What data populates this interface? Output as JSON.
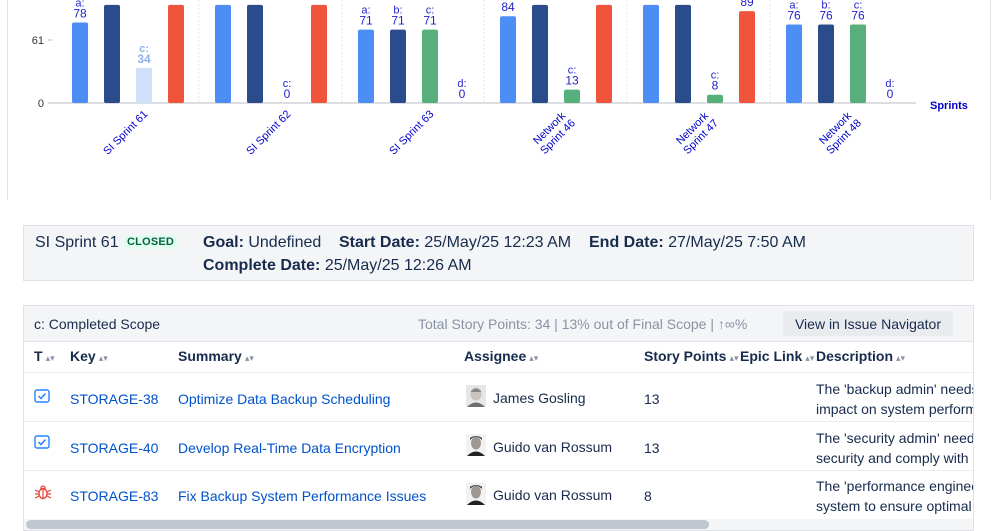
{
  "chart_data": {
    "type": "bar",
    "ylabel_ticks": [
      "0",
      "61"
    ],
    "y_ticks": [
      0,
      61
    ],
    "ylim": [
      0,
      95
    ],
    "x_axis_label": "Sprints",
    "categories": [
      "SI Sprint 61",
      "SI Sprint 62",
      "SI Sprint 63",
      "Network Sprint 46",
      "Network Sprint 47",
      "Network Sprint 48"
    ],
    "series": [
      {
        "name": "a",
        "color": "#4c8df6",
        "values": [
          78,
          95,
          71,
          84,
          95,
          76
        ]
      },
      {
        "name": "b",
        "color": "#2b4c8c",
        "values": [
          95,
          95,
          71,
          95,
          95,
          76
        ]
      },
      {
        "name": "c",
        "color": "#cfe0fa",
        "values": [
          34,
          0,
          71,
          13,
          8,
          76
        ]
      },
      {
        "name": "d",
        "color": "#f0553b",
        "values": [
          95,
          95,
          0,
          95,
          89,
          0
        ]
      }
    ],
    "bar_colors": [
      [
        "#4c8df6",
        "#2b4c8c",
        "#cfe0fa",
        "#f0553b"
      ],
      [
        "#4c8df6",
        "#2b4c8c",
        "#cfe0fa",
        "#f0553b"
      ],
      [
        "#4c8df6",
        "#2b4c8c",
        "#57b07b",
        "#f0553b"
      ],
      [
        "#4c8df6",
        "#2b4c8c",
        "#57b07b",
        "#f0553b"
      ],
      [
        "#4c8df6",
        "#2b4c8c",
        "#57b07b",
        "#f0553b"
      ],
      [
        "#4c8df6",
        "#2b4c8c",
        "#57b07b",
        "#f0553b"
      ]
    ],
    "data_labels": [
      [
        {
          "key": "a:",
          "value": "78"
        },
        null,
        {
          "key": "c:",
          "value": "34"
        },
        null
      ],
      [
        null,
        null,
        {
          "key": "c:",
          "value": "0"
        },
        null
      ],
      [
        {
          "key": "a:",
          "value": "71"
        },
        {
          "key": "b:",
          "value": "71"
        },
        {
          "key": "c:",
          "value": "71"
        },
        {
          "key": "d:",
          "value": "0"
        }
      ],
      [
        {
          "key": "",
          "value": "84"
        },
        null,
        {
          "key": "c:",
          "value": "13"
        },
        null
      ],
      [
        null,
        null,
        {
          "key": "c:",
          "value": "8"
        },
        {
          "key": "",
          "value": "89"
        }
      ],
      [
        {
          "key": "a:",
          "value": "76"
        },
        {
          "key": "b:",
          "value": "76"
        },
        {
          "key": "c:",
          "value": "76"
        },
        {
          "key": "d:",
          "value": "0"
        }
      ]
    ],
    "label_color": "#2222cc",
    "axis_label_color": "#0000cc"
  },
  "sprint": {
    "name": "SI Sprint 61",
    "status": "CLOSED",
    "goal_label": "Goal:",
    "goal": "Undefined",
    "start_label": "Start Date:",
    "start": "25/May/25 12:23 AM",
    "end_label": "End Date:",
    "end": "27/May/25 7:50 AM",
    "complete_label": "Complete Date:",
    "complete": "25/May/25 12:26 AM"
  },
  "scope": {
    "title": "c: Completed Scope",
    "summary": "Total Story Points: 34 | 13% out of Final Scope | ↑∞%",
    "view_button": "View in Issue Navigator",
    "columns": {
      "type": "T",
      "key": "Key",
      "summary": "Summary",
      "assignee": "Assignee",
      "points": "Story Points",
      "epic": "Epic Link",
      "description": "Description"
    },
    "rows": [
      {
        "type_icon": "story-checkbox-icon",
        "key": "STORAGE-38",
        "summary": "Optimize Data Backup Scheduling",
        "assignee": "James Gosling",
        "points": "13",
        "epic": "",
        "desc_line1": "The 'backup admin' needs",
        "desc_line2": "impact on system perform"
      },
      {
        "type_icon": "story-checkbox-icon",
        "key": "STORAGE-40",
        "summary": "Develop Real-Time Data Encryption",
        "assignee": "Guido van Rossum",
        "points": "13",
        "epic": "",
        "desc_line1": "The 'security admin' needs",
        "desc_line2": "security and comply with r"
      },
      {
        "type_icon": "bug-icon",
        "key": "STORAGE-83",
        "summary": "Fix Backup System Performance Issues",
        "assignee": "Guido van Rossum",
        "points": "8",
        "epic": "",
        "desc_line1": "The 'performance enginee",
        "desc_line2": "system to ensure optimal c"
      }
    ]
  },
  "colors": {
    "link": "#0052cc",
    "badge_green": "#006644",
    "bug_red": "#e5493a",
    "story_blue": "#2684ff"
  }
}
